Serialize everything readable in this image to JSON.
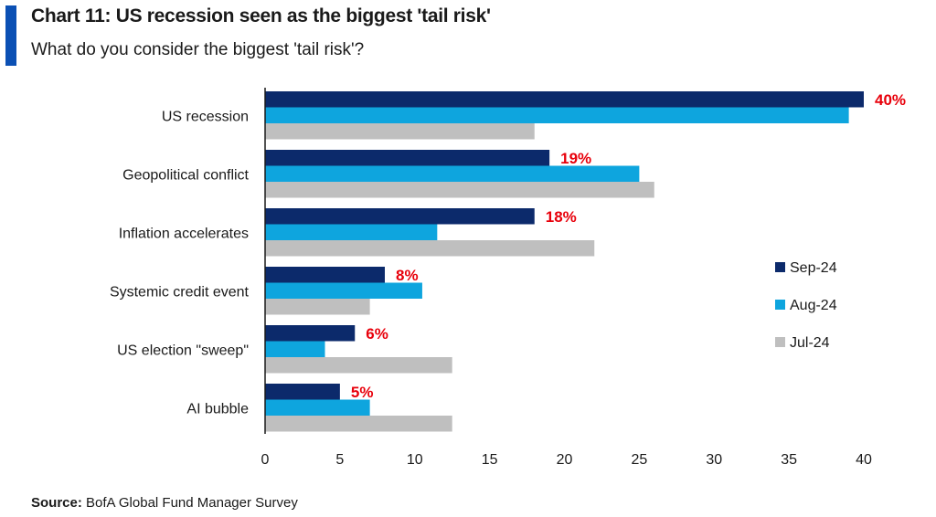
{
  "header": {
    "title": "Chart 11: US recession seen as the biggest 'tail risk'",
    "subtitle": "What do you consider the biggest 'tail risk'?",
    "accent_color": "#0b50b4"
  },
  "source": {
    "label": "Source:",
    "text": "BofA Global Fund Manager Survey"
  },
  "chart_data": {
    "type": "bar",
    "orientation": "horizontal",
    "title": "Chart 11: US recession seen as the biggest 'tail risk'",
    "subtitle": "What do you consider the biggest 'tail risk'?",
    "categories": [
      "US recession",
      "Geopolitical conflict",
      "Inflation accelerates",
      "Systemic credit event",
      "US election \"sweep\"",
      "AI bubble"
    ],
    "series": [
      {
        "name": "Sep-24",
        "color": "#0c2a6b",
        "values": [
          40,
          19,
          18,
          8,
          6,
          5
        ]
      },
      {
        "name": "Aug-24",
        "color": "#0ea5de",
        "values": [
          39,
          25,
          11.5,
          10.5,
          4,
          7
        ]
      },
      {
        "name": "Jul-24",
        "color": "#bfbfbf",
        "values": [
          18,
          26,
          22,
          7,
          12.5,
          12.5
        ]
      }
    ],
    "data_labels": [
      "40%",
      "19%",
      "18%",
      "8%",
      "6%",
      "5%"
    ],
    "data_label_series": "Sep-24",
    "data_label_color": "#e8000b",
    "xlim": [
      0,
      40
    ],
    "xticks": [
      0,
      5,
      10,
      15,
      20,
      25,
      30,
      35,
      40
    ],
    "xlabel": "",
    "ylabel": "",
    "grid": false,
    "legend_position": "right"
  }
}
